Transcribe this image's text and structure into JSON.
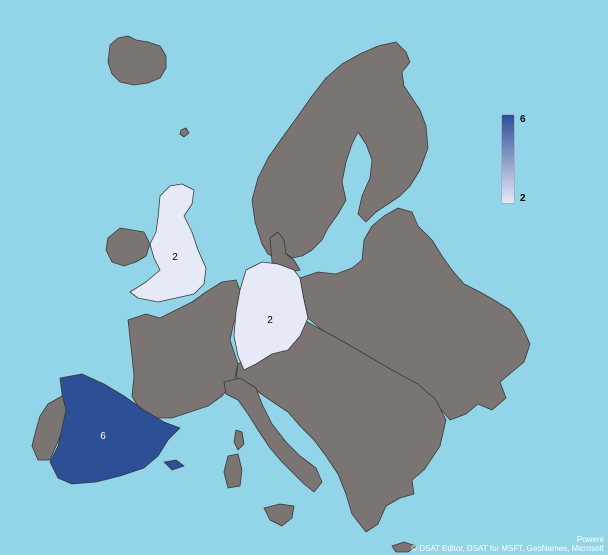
{
  "colors": {
    "sea": "#93d5e8",
    "land_no_data": "#7a7473",
    "border": "#3d3838",
    "scale_low": "#e6e9f6",
    "scale_high": "#2d4f96"
  },
  "legend": {
    "max": "6",
    "min": "2"
  },
  "regions": [
    {
      "name": "United Kingdom",
      "value": 2,
      "label": "2"
    },
    {
      "name": "Germany",
      "value": 2,
      "label": "2"
    },
    {
      "name": "Spain",
      "value": 6,
      "label": "6"
    }
  ],
  "attribution": {
    "line1": "Powere",
    "line2": "© DSAT Editor, DSAT for MSFT, GeoNames, Microsoft"
  }
}
